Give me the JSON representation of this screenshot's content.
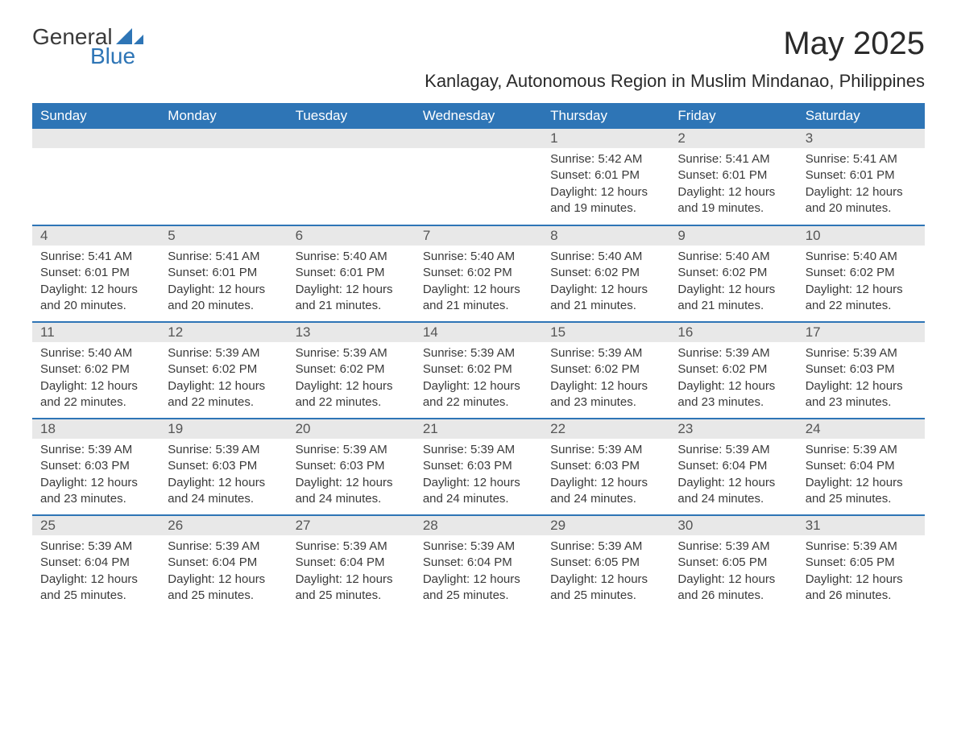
{
  "brand": {
    "word1": "General",
    "word2": "Blue",
    "accent_color": "#2e75b6"
  },
  "title": "May 2025",
  "location": "Kanlagay, Autonomous Region in Muslim Mindanao, Philippines",
  "colors": {
    "header_bg": "#2e75b6",
    "header_fg": "#ffffff",
    "daynum_bg": "#e8e8e8",
    "cell_border": "#2e75b6",
    "text": "#3a3a3a",
    "page_bg": "#ffffff"
  },
  "typography": {
    "title_fontsize": 40,
    "location_fontsize": 22,
    "header_fontsize": 17,
    "daynum_fontsize": 17,
    "body_fontsize": 15
  },
  "layout": {
    "columns": 7,
    "rows": 5,
    "start_weekday": "Sunday"
  },
  "weekdays": [
    "Sunday",
    "Monday",
    "Tuesday",
    "Wednesday",
    "Thursday",
    "Friday",
    "Saturday"
  ],
  "leading_blanks": 4,
  "days": [
    {
      "n": 1,
      "sunrise": "5:42 AM",
      "sunset": "6:01 PM",
      "daylight": "12 hours and 19 minutes."
    },
    {
      "n": 2,
      "sunrise": "5:41 AM",
      "sunset": "6:01 PM",
      "daylight": "12 hours and 19 minutes."
    },
    {
      "n": 3,
      "sunrise": "5:41 AM",
      "sunset": "6:01 PM",
      "daylight": "12 hours and 20 minutes."
    },
    {
      "n": 4,
      "sunrise": "5:41 AM",
      "sunset": "6:01 PM",
      "daylight": "12 hours and 20 minutes."
    },
    {
      "n": 5,
      "sunrise": "5:41 AM",
      "sunset": "6:01 PM",
      "daylight": "12 hours and 20 minutes."
    },
    {
      "n": 6,
      "sunrise": "5:40 AM",
      "sunset": "6:01 PM",
      "daylight": "12 hours and 21 minutes."
    },
    {
      "n": 7,
      "sunrise": "5:40 AM",
      "sunset": "6:02 PM",
      "daylight": "12 hours and 21 minutes."
    },
    {
      "n": 8,
      "sunrise": "5:40 AM",
      "sunset": "6:02 PM",
      "daylight": "12 hours and 21 minutes."
    },
    {
      "n": 9,
      "sunrise": "5:40 AM",
      "sunset": "6:02 PM",
      "daylight": "12 hours and 21 minutes."
    },
    {
      "n": 10,
      "sunrise": "5:40 AM",
      "sunset": "6:02 PM",
      "daylight": "12 hours and 22 minutes."
    },
    {
      "n": 11,
      "sunrise": "5:40 AM",
      "sunset": "6:02 PM",
      "daylight": "12 hours and 22 minutes."
    },
    {
      "n": 12,
      "sunrise": "5:39 AM",
      "sunset": "6:02 PM",
      "daylight": "12 hours and 22 minutes."
    },
    {
      "n": 13,
      "sunrise": "5:39 AM",
      "sunset": "6:02 PM",
      "daylight": "12 hours and 22 minutes."
    },
    {
      "n": 14,
      "sunrise": "5:39 AM",
      "sunset": "6:02 PM",
      "daylight": "12 hours and 22 minutes."
    },
    {
      "n": 15,
      "sunrise": "5:39 AM",
      "sunset": "6:02 PM",
      "daylight": "12 hours and 23 minutes."
    },
    {
      "n": 16,
      "sunrise": "5:39 AM",
      "sunset": "6:02 PM",
      "daylight": "12 hours and 23 minutes."
    },
    {
      "n": 17,
      "sunrise": "5:39 AM",
      "sunset": "6:03 PM",
      "daylight": "12 hours and 23 minutes."
    },
    {
      "n": 18,
      "sunrise": "5:39 AM",
      "sunset": "6:03 PM",
      "daylight": "12 hours and 23 minutes."
    },
    {
      "n": 19,
      "sunrise": "5:39 AM",
      "sunset": "6:03 PM",
      "daylight": "12 hours and 24 minutes."
    },
    {
      "n": 20,
      "sunrise": "5:39 AM",
      "sunset": "6:03 PM",
      "daylight": "12 hours and 24 minutes."
    },
    {
      "n": 21,
      "sunrise": "5:39 AM",
      "sunset": "6:03 PM",
      "daylight": "12 hours and 24 minutes."
    },
    {
      "n": 22,
      "sunrise": "5:39 AM",
      "sunset": "6:03 PM",
      "daylight": "12 hours and 24 minutes."
    },
    {
      "n": 23,
      "sunrise": "5:39 AM",
      "sunset": "6:04 PM",
      "daylight": "12 hours and 24 minutes."
    },
    {
      "n": 24,
      "sunrise": "5:39 AM",
      "sunset": "6:04 PM",
      "daylight": "12 hours and 25 minutes."
    },
    {
      "n": 25,
      "sunrise": "5:39 AM",
      "sunset": "6:04 PM",
      "daylight": "12 hours and 25 minutes."
    },
    {
      "n": 26,
      "sunrise": "5:39 AM",
      "sunset": "6:04 PM",
      "daylight": "12 hours and 25 minutes."
    },
    {
      "n": 27,
      "sunrise": "5:39 AM",
      "sunset": "6:04 PM",
      "daylight": "12 hours and 25 minutes."
    },
    {
      "n": 28,
      "sunrise": "5:39 AM",
      "sunset": "6:04 PM",
      "daylight": "12 hours and 25 minutes."
    },
    {
      "n": 29,
      "sunrise": "5:39 AM",
      "sunset": "6:05 PM",
      "daylight": "12 hours and 25 minutes."
    },
    {
      "n": 30,
      "sunrise": "5:39 AM",
      "sunset": "6:05 PM",
      "daylight": "12 hours and 26 minutes."
    },
    {
      "n": 31,
      "sunrise": "5:39 AM",
      "sunset": "6:05 PM",
      "daylight": "12 hours and 26 minutes."
    }
  ],
  "labels": {
    "sunrise": "Sunrise:",
    "sunset": "Sunset:",
    "daylight": "Daylight:"
  }
}
